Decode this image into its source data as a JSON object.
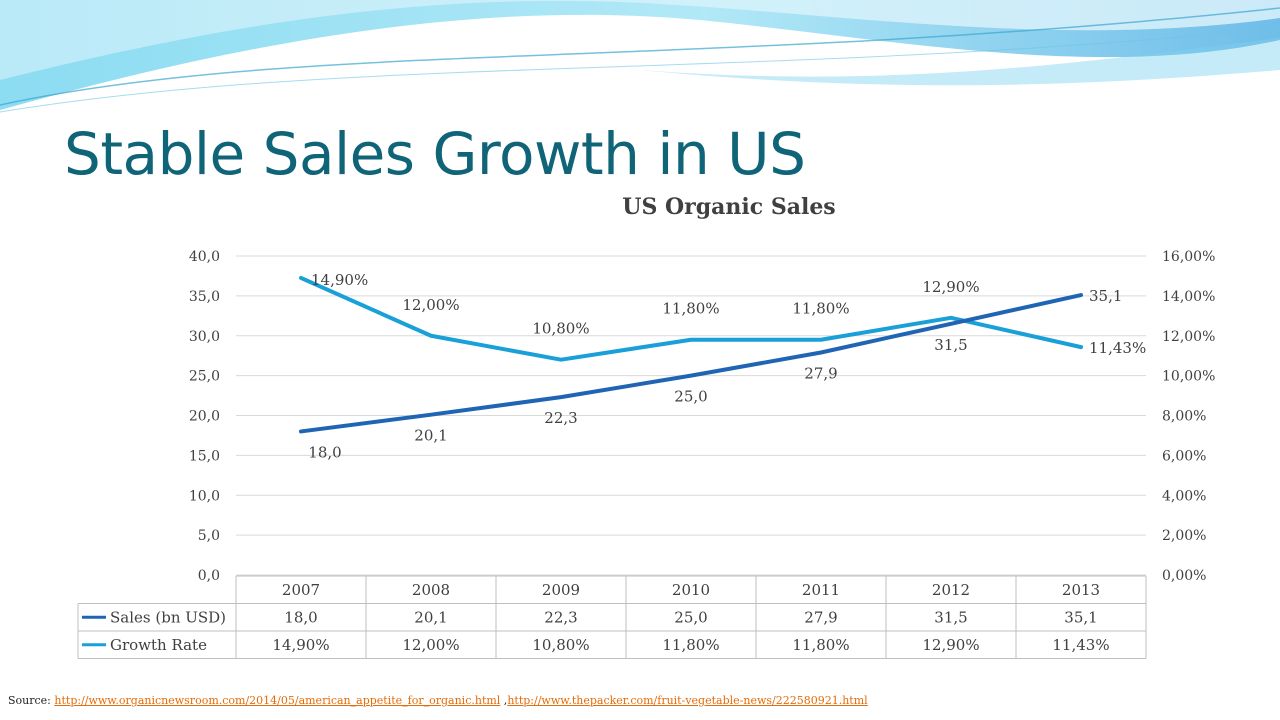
{
  "slide": {
    "title": "Stable Sales Growth in US"
  },
  "colors": {
    "title": "#0f6478",
    "sales_series": "#1f65b4",
    "growth_series": "#1aa0d8",
    "gridline": "#d9d9d9",
    "link": "#e46c0a"
  },
  "chart_data": {
    "type": "line",
    "title": "US Organic Sales",
    "categories": [
      "2007",
      "2008",
      "2009",
      "2010",
      "2011",
      "2012",
      "2013"
    ],
    "series": [
      {
        "name": "Sales (bn USD)",
        "axis": "left",
        "values": [
          18.0,
          20.1,
          22.3,
          25.0,
          27.9,
          31.5,
          35.1
        ],
        "labels": [
          "18,0",
          "20,1",
          "22,3",
          "25,0",
          "27,9",
          "31,5",
          "35,1"
        ]
      },
      {
        "name": "Growth Rate",
        "axis": "right",
        "values": [
          14.9,
          12.0,
          10.8,
          11.8,
          11.8,
          12.9,
          11.43
        ],
        "labels": [
          "14,90%",
          "12,00%",
          "10,80%",
          "11,80%",
          "11,80%",
          "12,90%",
          "11,43%"
        ]
      }
    ],
    "y_left": {
      "range": [
        0,
        40
      ],
      "ticks": [
        "0,0",
        "5,0",
        "10,0",
        "15,0",
        "20,0",
        "25,0",
        "30,0",
        "35,0",
        "40,0"
      ]
    },
    "y_right": {
      "range": [
        0,
        16
      ],
      "ticks": [
        "0,00%",
        "2,00%",
        "4,00%",
        "6,00%",
        "8,00%",
        "10,00%",
        "12,00%",
        "14,00%",
        "16,00%"
      ]
    },
    "grid": true,
    "legend": "data-table-below"
  },
  "source": {
    "label": "Source:",
    "link1": "http://www.organicnewsroom.com/2014/05/american_appetite_for_organic.html",
    "separator": " ,",
    "link2": "http://www.thepacker.com/fruit-vegetable-news/222580921.html"
  }
}
